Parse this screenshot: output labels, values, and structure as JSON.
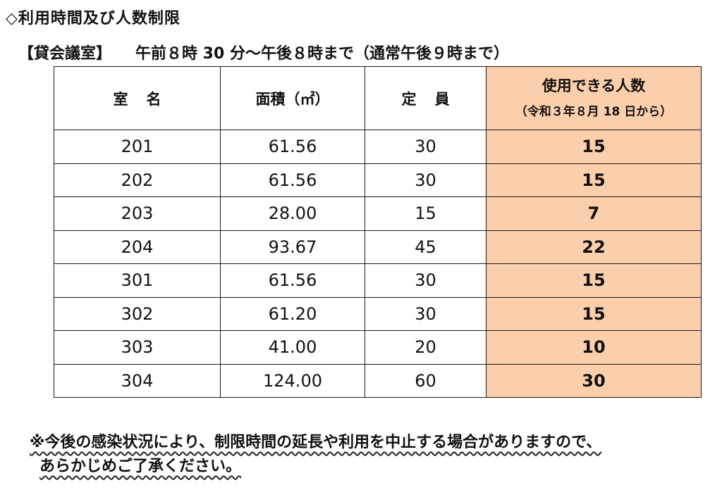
{
  "heading": "◇利用時間及び人数制限",
  "subheading": {
    "room_type": "【貸会議室】",
    "hours": "午前８時 30 分～午後８時まで（通常午後９時まで）"
  },
  "table": {
    "headers": {
      "room": "室名",
      "area": "面積（㎡）",
      "capacity": "定員",
      "usable": "使用できる人数",
      "usable_sub": "（令和３年８月 18 日から）"
    },
    "rows": [
      {
        "room": "201",
        "area": "61.56",
        "capacity": "30",
        "usable": "15"
      },
      {
        "room": "202",
        "area": "61.56",
        "capacity": "30",
        "usable": "15"
      },
      {
        "room": "203",
        "area": "28.00",
        "capacity": "15",
        "usable": "7"
      },
      {
        "room": "204",
        "area": "93.67",
        "capacity": "45",
        "usable": "22"
      },
      {
        "room": "301",
        "area": "61.56",
        "capacity": "30",
        "usable": "15"
      },
      {
        "room": "302",
        "area": "61.20",
        "capacity": "30",
        "usable": "15"
      },
      {
        "room": "303",
        "area": "41.00",
        "capacity": "20",
        "usable": "10"
      },
      {
        "room": "304",
        "area": "124.00",
        "capacity": "60",
        "usable": "30"
      }
    ]
  },
  "note": {
    "line1": "※今後の感染状況により、制限時間の延長や利用を中止する場合がありますので、",
    "line2": "あらかじめご了承ください。"
  },
  "colors": {
    "highlight": "#fbcfab"
  }
}
